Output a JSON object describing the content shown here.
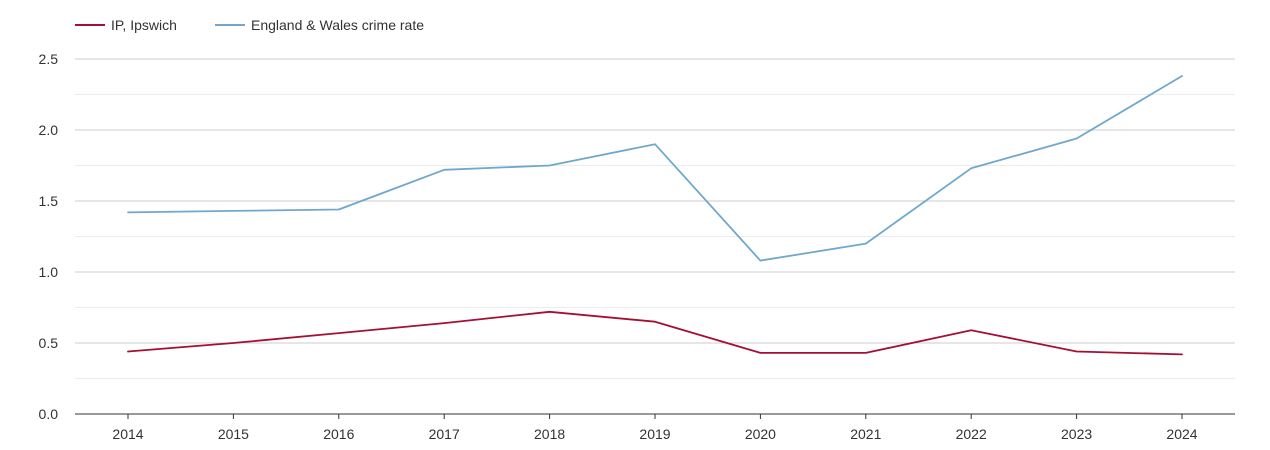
{
  "chart_data": {
    "type": "line",
    "title": "",
    "xlabel": "",
    "ylabel": "",
    "categories": [
      "2014",
      "2015",
      "2016",
      "2017",
      "2018",
      "2019",
      "2020",
      "2021",
      "2022",
      "2023",
      "2024"
    ],
    "ylim": [
      0,
      2.5
    ],
    "yticks": [
      "0.0",
      "0.5",
      "1.0",
      "1.5",
      "2.0",
      "2.5"
    ],
    "grid": true,
    "legend_position": "top-left",
    "series": [
      {
        "name": "IP, Ipswich",
        "color": "#a50f36",
        "values": [
          0.44,
          0.5,
          0.57,
          0.64,
          0.72,
          0.65,
          0.43,
          0.43,
          0.59,
          0.44,
          0.42
        ]
      },
      {
        "name": "England & Wales crime rate",
        "color": "#6fa8cc",
        "values": [
          1.42,
          1.43,
          1.44,
          1.72,
          1.75,
          1.9,
          1.08,
          1.2,
          1.73,
          1.94,
          2.38
        ]
      }
    ]
  }
}
